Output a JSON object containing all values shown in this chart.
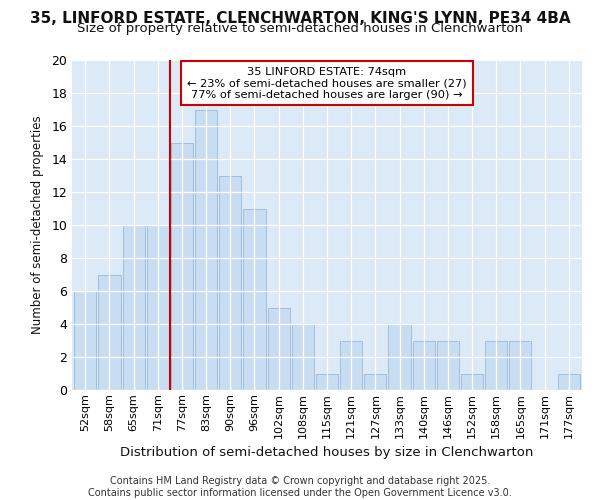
{
  "title1": "35, LINFORD ESTATE, CLENCHWARTON, KING'S LYNN, PE34 4BA",
  "title2": "Size of property relative to semi-detached houses in Clenchwarton",
  "xlabel": "Distribution of semi-detached houses by size in Clenchwarton",
  "ylabel": "Number of semi-detached properties",
  "categories": [
    "52sqm",
    "58sqm",
    "65sqm",
    "71sqm",
    "77sqm",
    "83sqm",
    "90sqm",
    "96sqm",
    "102sqm",
    "108sqm",
    "115sqm",
    "121sqm",
    "127sqm",
    "133sqm",
    "140sqm",
    "146sqm",
    "152sqm",
    "158sqm",
    "165sqm",
    "171sqm",
    "177sqm"
  ],
  "values": [
    6,
    7,
    10,
    10,
    15,
    17,
    13,
    11,
    5,
    4,
    1,
    3,
    1,
    4,
    3,
    3,
    1,
    3,
    3,
    0,
    1
  ],
  "bar_color": "#c9ddf2",
  "bar_edge_color": "#a0bedd",
  "vline_x": 3.5,
  "vline_color": "#cc0000",
  "annotation_title": "35 LINFORD ESTATE: 74sqm",
  "annotation_line1": "← 23% of semi-detached houses are smaller (27)",
  "annotation_line2": "77% of semi-detached houses are larger (90) →",
  "annotation_box_color": "#cc0000",
  "ylim": [
    0,
    20
  ],
  "yticks": [
    0,
    2,
    4,
    6,
    8,
    10,
    12,
    14,
    16,
    18,
    20
  ],
  "footer": "Contains HM Land Registry data © Crown copyright and database right 2025.\nContains public sector information licensed under the Open Government Licence v3.0.",
  "fig_bg_color": "#ffffff",
  "ax_bg_color": "#dce9f7",
  "grid_color": "#ffffff",
  "title1_fontsize": 11,
  "title2_fontsize": 9.5,
  "ylabel_fontsize": 8.5,
  "xlabel_fontsize": 9.5,
  "ytick_fontsize": 9,
  "xtick_fontsize": 8,
  "footer_fontsize": 7
}
